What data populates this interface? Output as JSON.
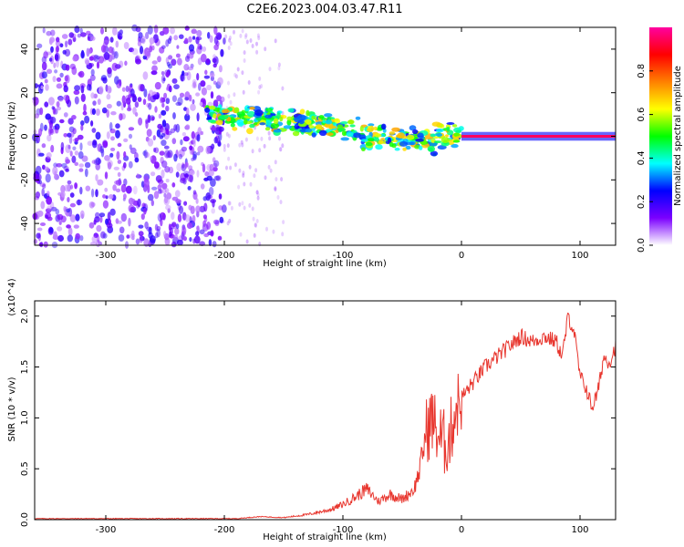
{
  "figure_title": "C2E6.2023.004.03.47.R11",
  "chart_data": [
    {
      "type": "heatmap",
      "title": "C2E6.2023.004.03.47.R11",
      "xlabel": "Height of straight line (km)",
      "ylabel": "Frequency (Hz)",
      "xlim": [
        -360,
        130
      ],
      "ylim": [
        -50,
        50
      ],
      "x_ticks": [
        -300,
        -200,
        -100,
        0,
        100
      ],
      "x_tick_labels": [
        "-300",
        "-200",
        "-100",
        "0",
        "100"
      ],
      "y_ticks": [
        -40,
        -20,
        0,
        20,
        40
      ],
      "y_tick_labels": [
        "-40",
        "-20",
        "0",
        "20",
        "40"
      ],
      "colorbar": {
        "label": "Normalized spectral amplitude",
        "range": [
          0.0,
          1.0
        ],
        "ticks": [
          0.0,
          0.2,
          0.4,
          0.6,
          0.8
        ],
        "tick_labels": [
          "0.0",
          "0.2",
          "0.4",
          "0.6",
          "0.8"
        ],
        "colormap": [
          "#ffffff",
          "#7b00ff",
          "#0000ff",
          "#00ffff",
          "#00ff00",
          "#ffff00",
          "#ff8000",
          "#ff0000",
          "#ff00a0"
        ]
      },
      "regions": [
        {
          "name": "noise",
          "x_range": [
            -360,
            -200
          ],
          "freq_range": [
            -50,
            50
          ],
          "amplitude": 0.15
        },
        {
          "name": "sparse-noise",
          "x_range": [
            -200,
            -150
          ],
          "freq_range": [
            -50,
            50
          ],
          "amplitude": 0.05
        },
        {
          "name": "signal-band",
          "x_range": [
            -215,
            0
          ],
          "center_start": 10,
          "center_end": 0,
          "width_hz": 8,
          "amplitude": 0.45
        },
        {
          "name": "carrier",
          "x_range": [
            0,
            130
          ],
          "center": 0,
          "width_hz": 2,
          "amplitude": 0.95
        }
      ],
      "grid": false
    },
    {
      "type": "line",
      "xlabel": "Height of straight line (km)",
      "ylabel": "SNR (10 * v/v)",
      "ylabel_multiplier": "(x10^4)",
      "xlim": [
        -360,
        130
      ],
      "ylim": [
        0,
        2.15
      ],
      "x_ticks": [
        -300,
        -200,
        -100,
        0,
        100
      ],
      "x_tick_labels": [
        "-300",
        "-200",
        "-100",
        "0",
        "100"
      ],
      "y_ticks": [
        0.0,
        0.5,
        1.0,
        1.5,
        2.0
      ],
      "y_tick_labels": [
        "0.0",
        "0.5",
        "1.0",
        "1.5",
        "2.0"
      ],
      "line_color": "#e8362e",
      "grid": false,
      "series": [
        {
          "x": [
            -360,
            -300,
            -250,
            -200,
            -190,
            -180,
            -170,
            -150,
            -130,
            -110,
            -100,
            -90,
            -80,
            -70,
            -60,
            -50,
            -40,
            -35,
            -30,
            -25,
            -20,
            -15,
            -10,
            -5,
            0,
            10,
            20,
            30,
            40,
            50,
            60,
            70,
            80,
            85,
            90,
            95,
            100,
            105,
            110,
            115,
            120,
            125,
            130
          ],
          "values": [
            0.01,
            0.01,
            0.01,
            0.01,
            0.01,
            0.02,
            0.03,
            0.02,
            0.05,
            0.1,
            0.15,
            0.22,
            0.3,
            0.18,
            0.25,
            0.2,
            0.3,
            0.5,
            0.85,
            1.0,
            0.85,
            0.75,
            0.8,
            1.1,
            1.2,
            1.35,
            1.5,
            1.6,
            1.7,
            1.8,
            1.75,
            1.8,
            1.75,
            1.6,
            2.0,
            1.85,
            1.4,
            1.3,
            1.1,
            1.25,
            1.6,
            1.55,
            1.7
          ]
        }
      ]
    }
  ]
}
